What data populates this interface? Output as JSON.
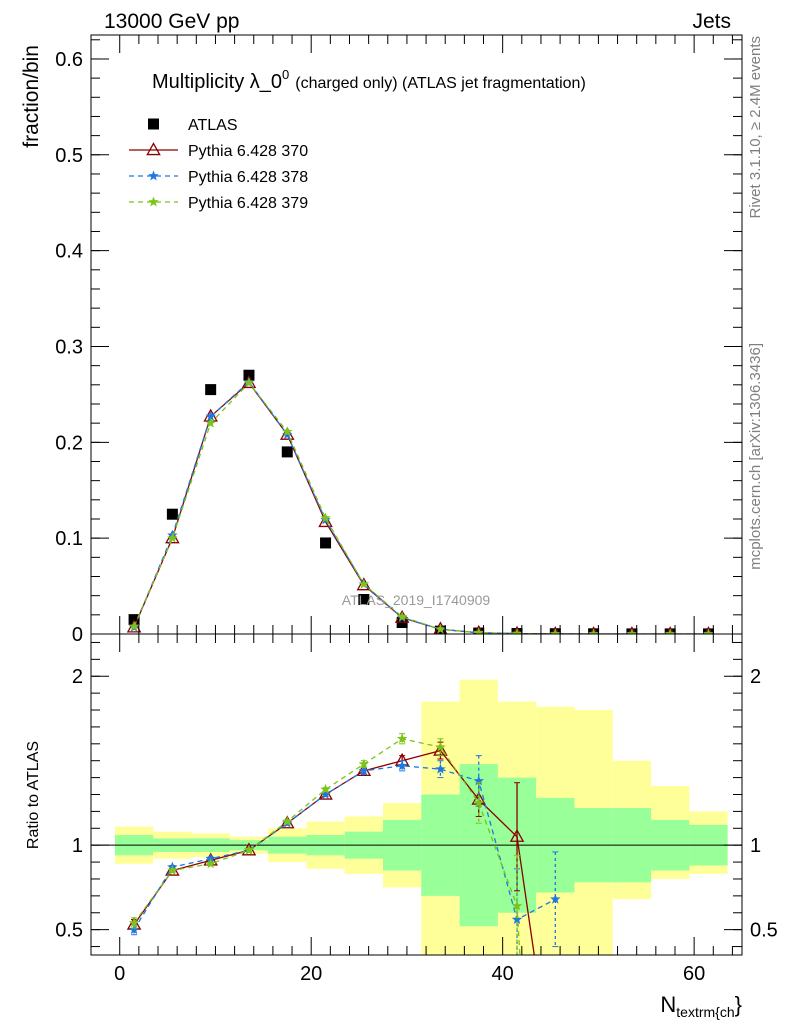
{
  "header": {
    "left": "13000 GeV pp",
    "right": "Jets"
  },
  "title": {
    "main": "Multiplicity λ_0",
    "sup": "0",
    "sub": "(charged only) (ATLAS jet fragmentation)"
  },
  "side_labels": {
    "rivet": "Rivet 3.1.10, ≥ 2.4M events",
    "mcplots": "mcplots.cern.ch [arXiv:1306.3436]"
  },
  "watermark": "ATLAS_2019_I1740909",
  "chart_data": [
    {
      "type": "scatter",
      "panel": "main",
      "ylabel": "fraction/bin",
      "xlim": [
        -3,
        65
      ],
      "ylim": [
        0,
        0.625
      ],
      "yticks": [
        0,
        0.1,
        0.2,
        0.3,
        0.4,
        0.5,
        0.6
      ],
      "ytick_labels": [
        "0",
        "0.1",
        "0.2",
        "0.3",
        "0.4",
        "0.5",
        "0.6"
      ],
      "x": [
        1.5,
        5.5,
        9.5,
        13.5,
        17.5,
        21.5,
        25.5,
        29.5,
        33.5,
        37.5,
        41.5,
        45.5,
        49.5,
        53.5,
        57.5,
        61.5
      ],
      "series": [
        {
          "name": "ATLAS",
          "color": "#000000",
          "marker": "square",
          "values": [
            0.015,
            0.125,
            0.255,
            0.27,
            0.19,
            0.095,
            0.036,
            0.012,
            0.003,
            0.001,
            0.0005,
            0.0003,
            0.0002,
            0.0001,
            0.0001,
            0.0001
          ]
        },
        {
          "name": "Pythia 6.428 370",
          "color": "#8b0000",
          "marker": "triangle",
          "dash": "solid",
          "values": [
            0.007,
            0.1,
            0.227,
            0.262,
            0.208,
            0.117,
            0.051,
            0.017,
            0.005,
            0.0013,
            0.0004,
            0.0001,
            0,
            0,
            0,
            0
          ]
        },
        {
          "name": "Pythia 6.428 378",
          "color": "#1f77e0",
          "marker": "star",
          "dash": "dashed",
          "values": [
            0.007,
            0.103,
            0.227,
            0.263,
            0.208,
            0.119,
            0.052,
            0.017,
            0.005,
            0.0012,
            0.0003,
            0.0001,
            0,
            0,
            0,
            0
          ]
        },
        {
          "name": "Pythia 6.428 379",
          "color": "#7cc31a",
          "marker": "star",
          "dash": "dashed",
          "values": [
            0.008,
            0.1,
            0.22,
            0.262,
            0.211,
            0.121,
            0.052,
            0.018,
            0.005,
            0.0013,
            0.0004,
            0.0001,
            0,
            0,
            0,
            0
          ]
        }
      ],
      "legend_position": "top-left"
    },
    {
      "type": "line",
      "panel": "ratio",
      "ylabel": "Ratio to ATLAS",
      "xlabel": "N",
      "xlabel_sub": "textrm{ch",
      "xlabel_tail": "}",
      "xlim": [
        -3,
        65
      ],
      "ylim": [
        0.35,
        2.25
      ],
      "yticks": [
        0.5,
        1,
        2
      ],
      "ytick_labels": [
        "0.5",
        "1",
        "2"
      ],
      "xticks": [
        0,
        20,
        40,
        60
      ],
      "xtick_labels": [
        "0",
        "20",
        "40",
        "60"
      ],
      "bands": {
        "edges": [
          -0.5,
          3.5,
          7.5,
          11.5,
          15.5,
          19.5,
          23.5,
          27.5,
          31.5,
          35.5,
          39.5,
          43.5,
          47.5,
          51.5,
          55.5,
          59.5,
          63.5
        ],
        "inner_color": "#99ff99",
        "outer_color": "#ffff99",
        "inner": [
          [
            0.94,
            1.06
          ],
          [
            0.96,
            1.04
          ],
          [
            0.96,
            1.04
          ],
          [
            0.97,
            1.03
          ],
          [
            0.95,
            1.05
          ],
          [
            0.94,
            1.06
          ],
          [
            0.92,
            1.08
          ],
          [
            0.85,
            1.15
          ],
          [
            0.7,
            1.3
          ],
          [
            0.52,
            1.48
          ],
          [
            0.6,
            1.4
          ],
          [
            0.72,
            1.28
          ],
          [
            0.78,
            1.22
          ],
          [
            0.78,
            1.22
          ],
          [
            0.85,
            1.15
          ],
          [
            0.88,
            1.12
          ]
        ],
        "outer": [
          [
            0.89,
            1.11
          ],
          [
            0.92,
            1.08
          ],
          [
            0.93,
            1.07
          ],
          [
            0.95,
            1.05
          ],
          [
            0.9,
            1.1
          ],
          [
            0.86,
            1.14
          ],
          [
            0.83,
            1.17
          ],
          [
            0.75,
            1.25
          ],
          [
            0.35,
            1.85
          ],
          [
            0.35,
            1.98
          ],
          [
            0.35,
            1.85
          ],
          [
            0.35,
            1.82
          ],
          [
            0.35,
            1.8
          ],
          [
            0.68,
            1.5
          ],
          [
            0.8,
            1.35
          ],
          [
            0.83,
            1.2
          ]
        ]
      },
      "series": [
        {
          "name": "Pythia 6.428 370",
          "color": "#8b0000",
          "marker": "triangle",
          "dash": "solid",
          "x": [
            1.5,
            5.5,
            9.5,
            13.5,
            17.5,
            21.5,
            25.5,
            29.5,
            33.5,
            37.5,
            41.5,
            43.3
          ],
          "values": [
            0.53,
            0.85,
            0.91,
            0.97,
            1.13,
            1.3,
            1.44,
            1.5,
            1.56,
            1.27,
            1.05,
            0.35
          ],
          "errors": [
            0.03,
            0.01,
            0.01,
            0.01,
            0.01,
            0.01,
            0.02,
            0.03,
            0.05,
            0.1,
            0.32,
            0
          ]
        },
        {
          "name": "Pythia 6.428 378",
          "color": "#1f77e0",
          "marker": "star",
          "dash": "dashed",
          "x": [
            1.5,
            5.5,
            9.5,
            13.5,
            17.5,
            21.5,
            25.5,
            29.5,
            33.5,
            37.5,
            41.5,
            45.5
          ],
          "values": [
            0.5,
            0.87,
            0.92,
            0.97,
            1.13,
            1.3,
            1.44,
            1.47,
            1.45,
            1.38,
            0.56,
            0.68
          ],
          "errors": [
            0.03,
            0.01,
            0.01,
            0.01,
            0.01,
            0.01,
            0.02,
            0.03,
            0.05,
            0.15,
            0.3,
            0.28
          ]
        },
        {
          "name": "Pythia 6.428 379",
          "color": "#7cc31a",
          "marker": "star",
          "dash": "dashed",
          "x": [
            1.5,
            5.5,
            9.5,
            13.5,
            17.5,
            21.5,
            25.5,
            29.5,
            33.5,
            37.5,
            41.5,
            41.8
          ],
          "values": [
            0.54,
            0.85,
            0.89,
            0.97,
            1.14,
            1.33,
            1.48,
            1.63,
            1.58,
            1.25,
            0.64,
            0.35
          ],
          "errors": [
            0.03,
            0.01,
            0.01,
            0.01,
            0.01,
            0.01,
            0.02,
            0.03,
            0.05,
            0.12,
            0.3,
            0
          ]
        }
      ]
    }
  ]
}
